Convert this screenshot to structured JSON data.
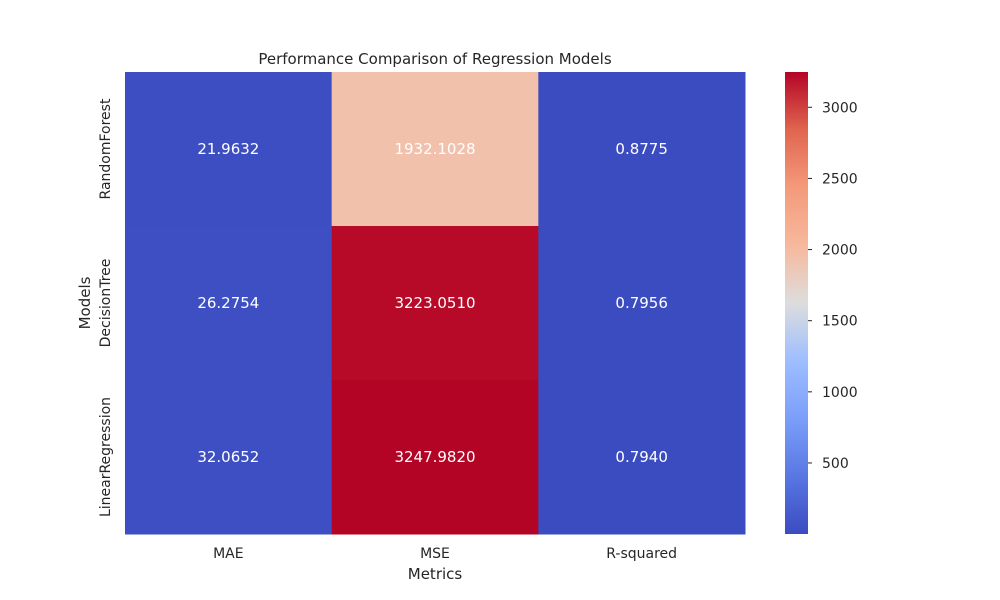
{
  "chart_data": {
    "type": "heatmap",
    "title": "Performance Comparison of Regression Models",
    "xlabel": "Metrics",
    "ylabel": "Models",
    "x_categories": [
      "MAE",
      "MSE",
      "R-squared"
    ],
    "y_categories": [
      "RandomForest",
      "DecisionTree",
      "LinearRegression"
    ],
    "values": [
      [
        21.9632,
        1932.1028,
        0.8775
      ],
      [
        26.2754,
        3223.051,
        0.7956
      ],
      [
        32.0652,
        3247.982,
        0.794
      ]
    ],
    "cell_labels": [
      [
        "21.9632",
        "1932.1028",
        "0.8775"
      ],
      [
        "26.2754",
        "3223.0510",
        "0.7956"
      ],
      [
        "32.0652",
        "3247.9820",
        "0.7940"
      ]
    ],
    "colormap": "coolwarm",
    "colorbar": {
      "vmin": 0.794,
      "vmax": 3247.982,
      "ticks": [
        500,
        1000,
        1500,
        2000,
        2500,
        3000
      ],
      "tick_labels": [
        "500",
        "1000",
        "1500",
        "2000",
        "2500",
        "3000"
      ]
    },
    "colors": {
      "low": "#3b4cc0",
      "mid": "#dddddd",
      "high": "#b40426"
    }
  }
}
